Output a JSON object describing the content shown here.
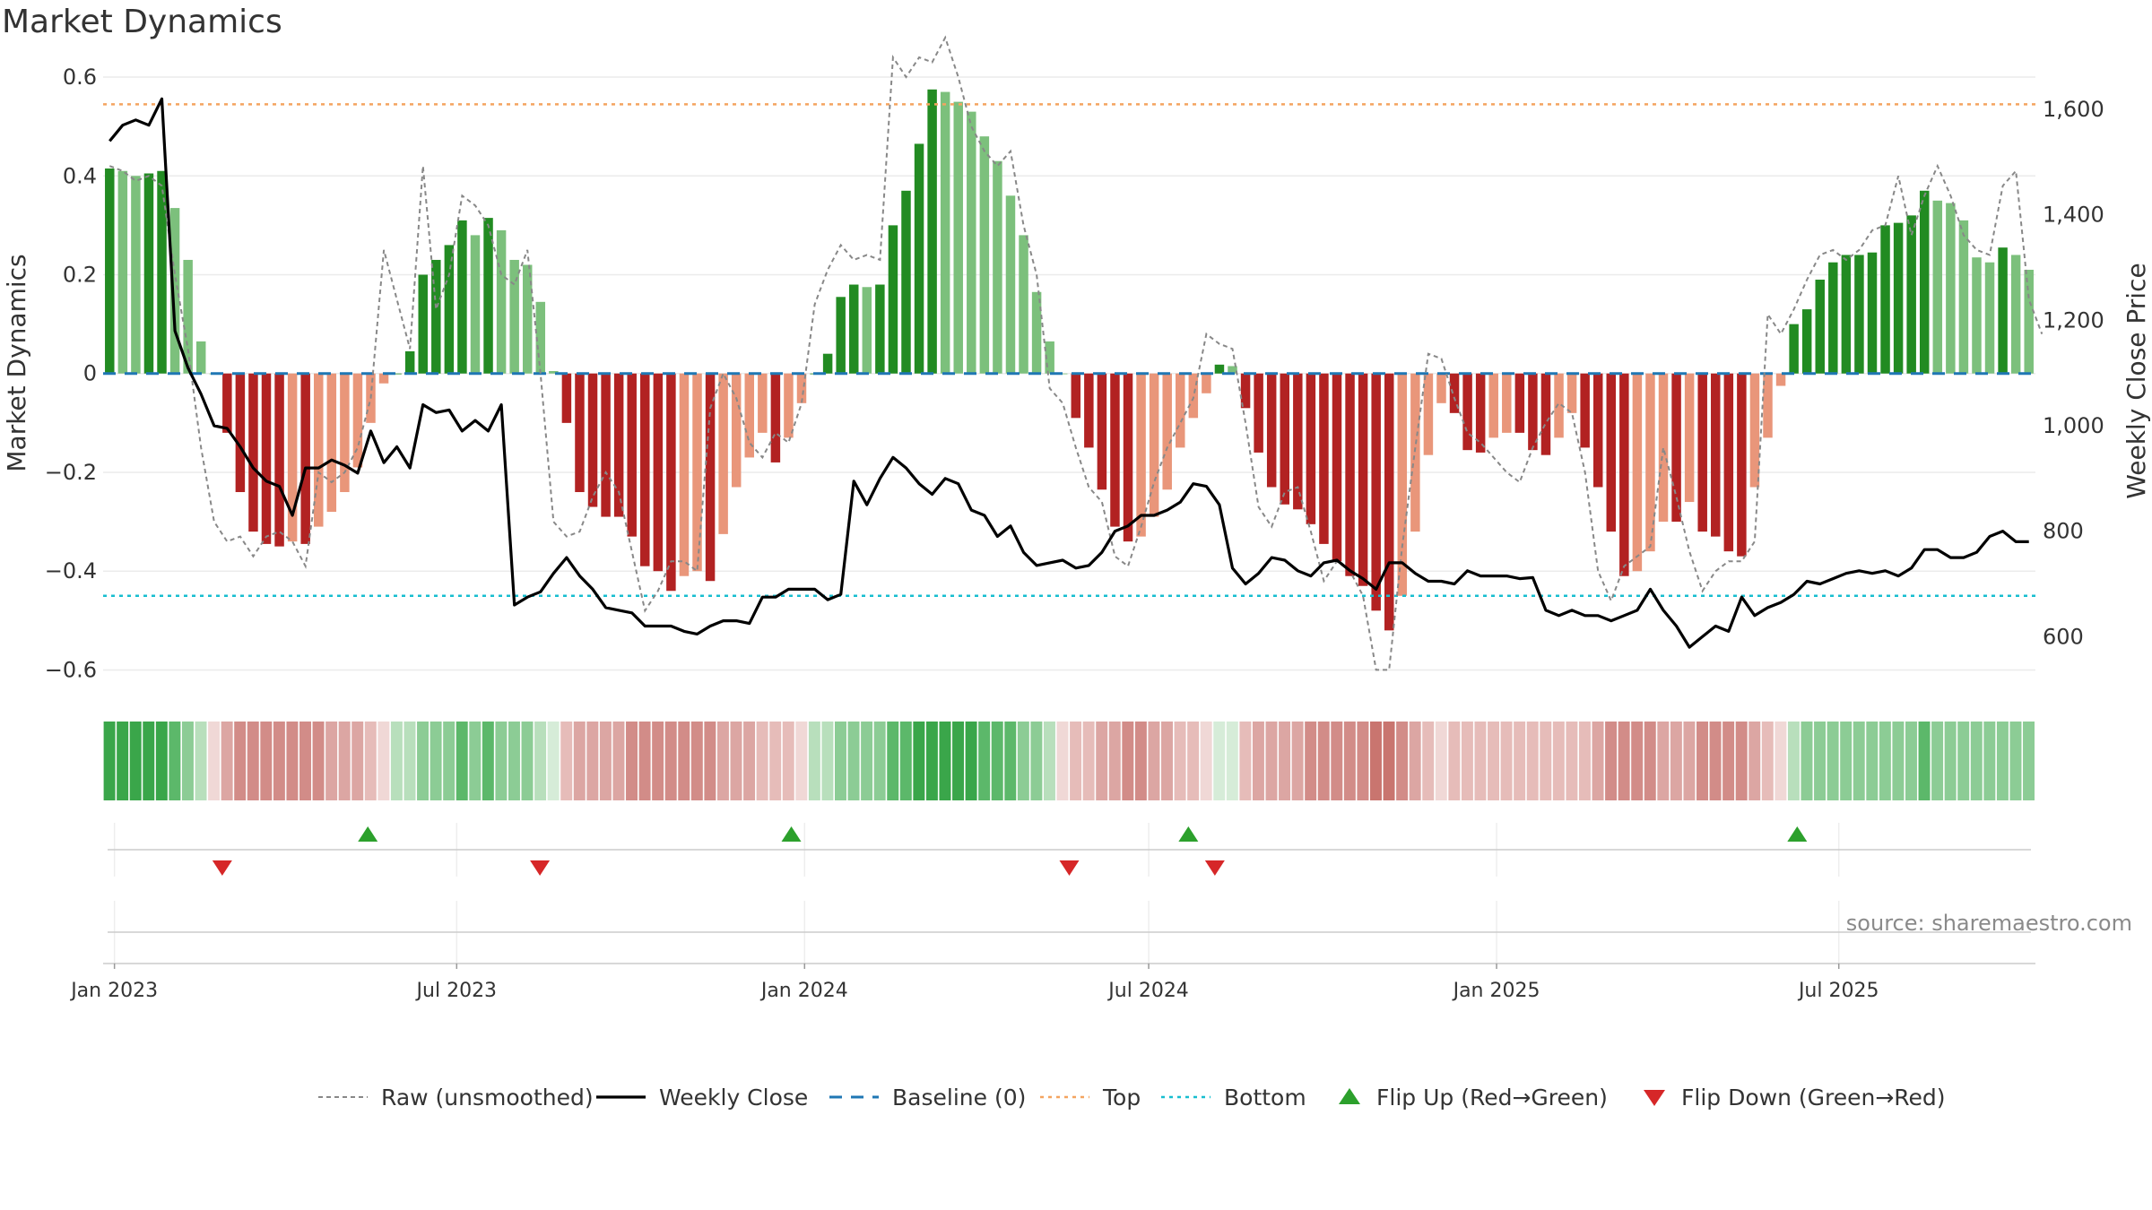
{
  "chart_data": {
    "type": "bar",
    "title": "Market Dynamics",
    "ylabel_left": "Market Dynamics",
    "ylabel_right": "Weekly Close Price",
    "ylim_left": [
      -0.65,
      0.62
    ],
    "ylim_right": [
      490,
      1680
    ],
    "yticks_left": [
      0.6,
      0.4,
      0.2,
      0,
      -0.2,
      -0.4,
      -0.6
    ],
    "ytick_labels_left": [
      "0.6",
      "0.4",
      "0.2",
      "0",
      "−0.2",
      "−0.4",
      "−0.6"
    ],
    "yticks_right": [
      1600,
      1400,
      1200,
      1000,
      800,
      600
    ],
    "ytick_labels_right": [
      "1,600",
      "1,400",
      "1,200",
      "1,000",
      "800",
      "600"
    ],
    "x_start": "2022-12-26",
    "x_end": "2025-10-13",
    "xticks": [
      "2023-01-01",
      "2023-07-01",
      "2024-01-01",
      "2024-07-01",
      "2025-01-01",
      "2025-07-01"
    ],
    "xtick_labels": [
      "Jan 2023",
      "Jul 2023",
      "Jan 2024",
      "Jul 2024",
      "Jan 2025",
      "Jul 2025"
    ],
    "top_level": 0.545,
    "bottom_level": -0.45,
    "baseline": 0,
    "grid": true,
    "legend_position": "bottom-center",
    "colors": {
      "strong_green": "#228B22",
      "light_green": "#7CC07C",
      "strong_red": "#B22222",
      "light_red": "#E9967A",
      "close_line": "#000000",
      "raw_line": "#888888",
      "baseline": "#1F77B4",
      "top": "#F4A460",
      "bottom": "#17BECF",
      "flip_up": "#2CA02C",
      "flip_down": "#D62728"
    },
    "bar_values": [
      0.415,
      0.41,
      0.4,
      0.405,
      0.41,
      0.335,
      0.23,
      0.065,
      0.0,
      -0.12,
      -0.24,
      -0.32,
      -0.345,
      -0.35,
      -0.34,
      -0.345,
      -0.31,
      -0.28,
      -0.24,
      -0.19,
      -0.1,
      -0.02,
      0.0,
      0.045,
      0.2,
      0.23,
      0.26,
      0.31,
      0.28,
      0.315,
      0.29,
      0.23,
      0.22,
      0.145,
      0.005,
      -0.1,
      -0.24,
      -0.27,
      -0.29,
      -0.29,
      -0.33,
      -0.39,
      -0.4,
      -0.44,
      -0.41,
      -0.4,
      -0.42,
      -0.325,
      -0.23,
      -0.17,
      -0.12,
      -0.18,
      -0.13,
      -0.06,
      0.0,
      0.04,
      0.155,
      0.18,
      0.175,
      0.18,
      0.3,
      0.37,
      0.465,
      0.575,
      0.57,
      0.55,
      0.53,
      0.48,
      0.43,
      0.36,
      0.28,
      0.165,
      0.065,
      0.0,
      -0.09,
      -0.15,
      -0.235,
      -0.31,
      -0.34,
      -0.33,
      -0.29,
      -0.235,
      -0.15,
      -0.09,
      -0.04,
      0.018,
      0.015,
      -0.07,
      -0.16,
      -0.23,
      -0.265,
      -0.275,
      -0.305,
      -0.345,
      -0.38,
      -0.41,
      -0.43,
      -0.48,
      -0.52,
      -0.45,
      -0.32,
      -0.165,
      -0.06,
      -0.08,
      -0.155,
      -0.16,
      -0.13,
      -0.12,
      -0.12,
      -0.155,
      -0.165,
      -0.13,
      -0.08,
      -0.15,
      -0.23,
      -0.32,
      -0.41,
      -0.4,
      -0.36,
      -0.3,
      -0.3,
      -0.26,
      -0.32,
      -0.33,
      -0.36,
      -0.37,
      -0.23,
      -0.13,
      -0.025,
      0.1,
      0.13,
      0.19,
      0.225,
      0.24,
      0.24,
      0.245,
      0.3,
      0.305,
      0.32,
      0.37,
      0.35,
      0.345,
      0.31,
      0.235,
      0.225,
      0.255,
      0.24,
      0.21
    ],
    "raw_values": [
      0.42,
      0.41,
      0.39,
      0.4,
      0.38,
      0.2,
      0.05,
      -0.15,
      -0.3,
      -0.34,
      -0.33,
      -0.37,
      -0.33,
      -0.32,
      -0.34,
      -0.39,
      -0.2,
      -0.22,
      -0.2,
      -0.15,
      -0.05,
      0.25,
      0.15,
      0.05,
      0.42,
      0.13,
      0.2,
      0.36,
      0.34,
      0.3,
      0.2,
      0.18,
      0.25,
      0.0,
      -0.3,
      -0.33,
      -0.32,
      -0.25,
      -0.2,
      -0.24,
      -0.36,
      -0.48,
      -0.44,
      -0.38,
      -0.38,
      -0.4,
      -0.07,
      -0.0,
      -0.05,
      -0.14,
      -0.17,
      -0.12,
      -0.14,
      -0.06,
      0.14,
      0.21,
      0.26,
      0.23,
      0.24,
      0.23,
      0.64,
      0.6,
      0.64,
      0.63,
      0.68,
      0.6,
      0.5,
      0.45,
      0.42,
      0.45,
      0.3,
      0.2,
      -0.03,
      -0.06,
      -0.15,
      -0.23,
      -0.26,
      -0.37,
      -0.39,
      -0.31,
      -0.22,
      -0.15,
      -0.1,
      -0.05,
      0.08,
      0.06,
      0.05,
      -0.1,
      -0.27,
      -0.31,
      -0.24,
      -0.23,
      -0.32,
      -0.42,
      -0.38,
      -0.4,
      -0.45,
      -0.6,
      -0.6,
      -0.35,
      -0.15,
      0.04,
      0.03,
      -0.05,
      -0.12,
      -0.14,
      -0.17,
      -0.2,
      -0.22,
      -0.15,
      -0.1,
      -0.06,
      -0.08,
      -0.2,
      -0.4,
      -0.46,
      -0.39,
      -0.37,
      -0.35,
      -0.15,
      -0.25,
      -0.36,
      -0.44,
      -0.4,
      -0.38,
      -0.38,
      -0.34,
      0.12,
      0.08,
      0.13,
      0.19,
      0.24,
      0.25,
      0.23,
      0.25,
      0.29,
      0.3,
      0.4,
      0.28,
      0.36,
      0.42,
      0.36,
      0.28,
      0.25,
      0.24,
      0.38,
      0.41,
      0.15,
      0.08
    ],
    "close_values": [
      1540,
      1570,
      1580,
      1570,
      1620,
      1180,
      1110,
      1060,
      1000,
      995,
      960,
      920,
      895,
      885,
      830,
      920,
      920,
      935,
      925,
      910,
      990,
      930,
      960,
      920,
      1040,
      1025,
      1030,
      990,
      1010,
      990,
      1040,
      660,
      675,
      685,
      720,
      750,
      715,
      690,
      655,
      650,
      645,
      620,
      620,
      620,
      610,
      605,
      620,
      630,
      630,
      625,
      675,
      675,
      690,
      690,
      690,
      670,
      680,
      895,
      850,
      900,
      940,
      920,
      890,
      870,
      900,
      890,
      840,
      830,
      790,
      810,
      760,
      735,
      740,
      745,
      730,
      735,
      760,
      800,
      810,
      830,
      830,
      840,
      855,
      890,
      885,
      850,
      730,
      700,
      720,
      750,
      745,
      725,
      715,
      740,
      745,
      725,
      710,
      690,
      740,
      740,
      720,
      705,
      705,
      700,
      725,
      715,
      715,
      715,
      710,
      712,
      650,
      640,
      650,
      640,
      640,
      630,
      640,
      650,
      690,
      650,
      620,
      580,
      600,
      620,
      610,
      675,
      640,
      655,
      665,
      680,
      705,
      700,
      710,
      720,
      725,
      720,
      725,
      715,
      730,
      765,
      765,
      750,
      750,
      760,
      790,
      800,
      780,
      780
    ],
    "weekly_shading": [
      "g4",
      "g4",
      "g4",
      "g4",
      "g4",
      "g3",
      "g2",
      "g1",
      "r0",
      "r2",
      "r3",
      "r3",
      "r3",
      "r3",
      "r3",
      "r3",
      "r3",
      "r2",
      "r2",
      "r2",
      "r1",
      "r0",
      "g1",
      "g1",
      "g2",
      "g2",
      "g2",
      "g3",
      "g2",
      "g3",
      "g2",
      "g2",
      "g2",
      "g1",
      "g0",
      "r1",
      "r2",
      "r2",
      "r2",
      "r2",
      "r3",
      "r3",
      "r3",
      "r3",
      "r3",
      "r3",
      "r3",
      "r2",
      "r2",
      "r2",
      "r1",
      "r1",
      "r1",
      "r0",
      "g1",
      "g1",
      "g2",
      "g2",
      "g2",
      "g2",
      "g3",
      "g3",
      "g4",
      "g4",
      "g4",
      "g4",
      "g4",
      "g3",
      "g3",
      "g3",
      "g2",
      "g2",
      "g1",
      "r0",
      "r1",
      "r1",
      "r2",
      "r2",
      "r3",
      "r3",
      "r2",
      "r2",
      "r1",
      "r1",
      "r0",
      "g0",
      "g0",
      "r1",
      "r2",
      "r2",
      "r2",
      "r2",
      "r3",
      "r3",
      "r3",
      "r3",
      "r3",
      "r4",
      "r4",
      "r3",
      "r2",
      "r1",
      "r0",
      "r1",
      "r1",
      "r1",
      "r1",
      "r1",
      "r1",
      "r1",
      "r1",
      "r1",
      "r1",
      "r1",
      "r2",
      "r3",
      "r3",
      "r3",
      "r3",
      "r2",
      "r2",
      "r2",
      "r3",
      "r3",
      "r3",
      "r3",
      "r2",
      "r1",
      "r0",
      "g1",
      "g2",
      "g2",
      "g2",
      "g2",
      "g2",
      "g2",
      "g2",
      "g2",
      "g2",
      "g3",
      "g2",
      "g2",
      "g2",
      "g2",
      "g2",
      "g2",
      "g2",
      "g2"
    ],
    "flips_up": [
      "2023-05-15",
      "2023-12-25",
      "2024-07-22",
      "2025-06-09"
    ],
    "flips_down": [
      "2023-02-27",
      "2023-08-14",
      "2024-05-20",
      "2024-08-05"
    ],
    "flip_up_label": "Flip Up (Red→Green)",
    "flip_down_label": "Flip Down (Green→Red)",
    "source_text": "source: sharemaestro.com",
    "legend": [
      {
        "label": "Raw (unsmoothed)",
        "kind": "raw"
      },
      {
        "label": "Weekly Close",
        "kind": "close"
      },
      {
        "label": "Baseline (0)",
        "kind": "baseline"
      },
      {
        "label": "Top",
        "kind": "top"
      },
      {
        "label": "Bottom",
        "kind": "bottom"
      },
      {
        "label": "Flip Up (Red→Green)",
        "kind": "up"
      },
      {
        "label": "Flip Down (Green→Red)",
        "kind": "down"
      }
    ]
  }
}
